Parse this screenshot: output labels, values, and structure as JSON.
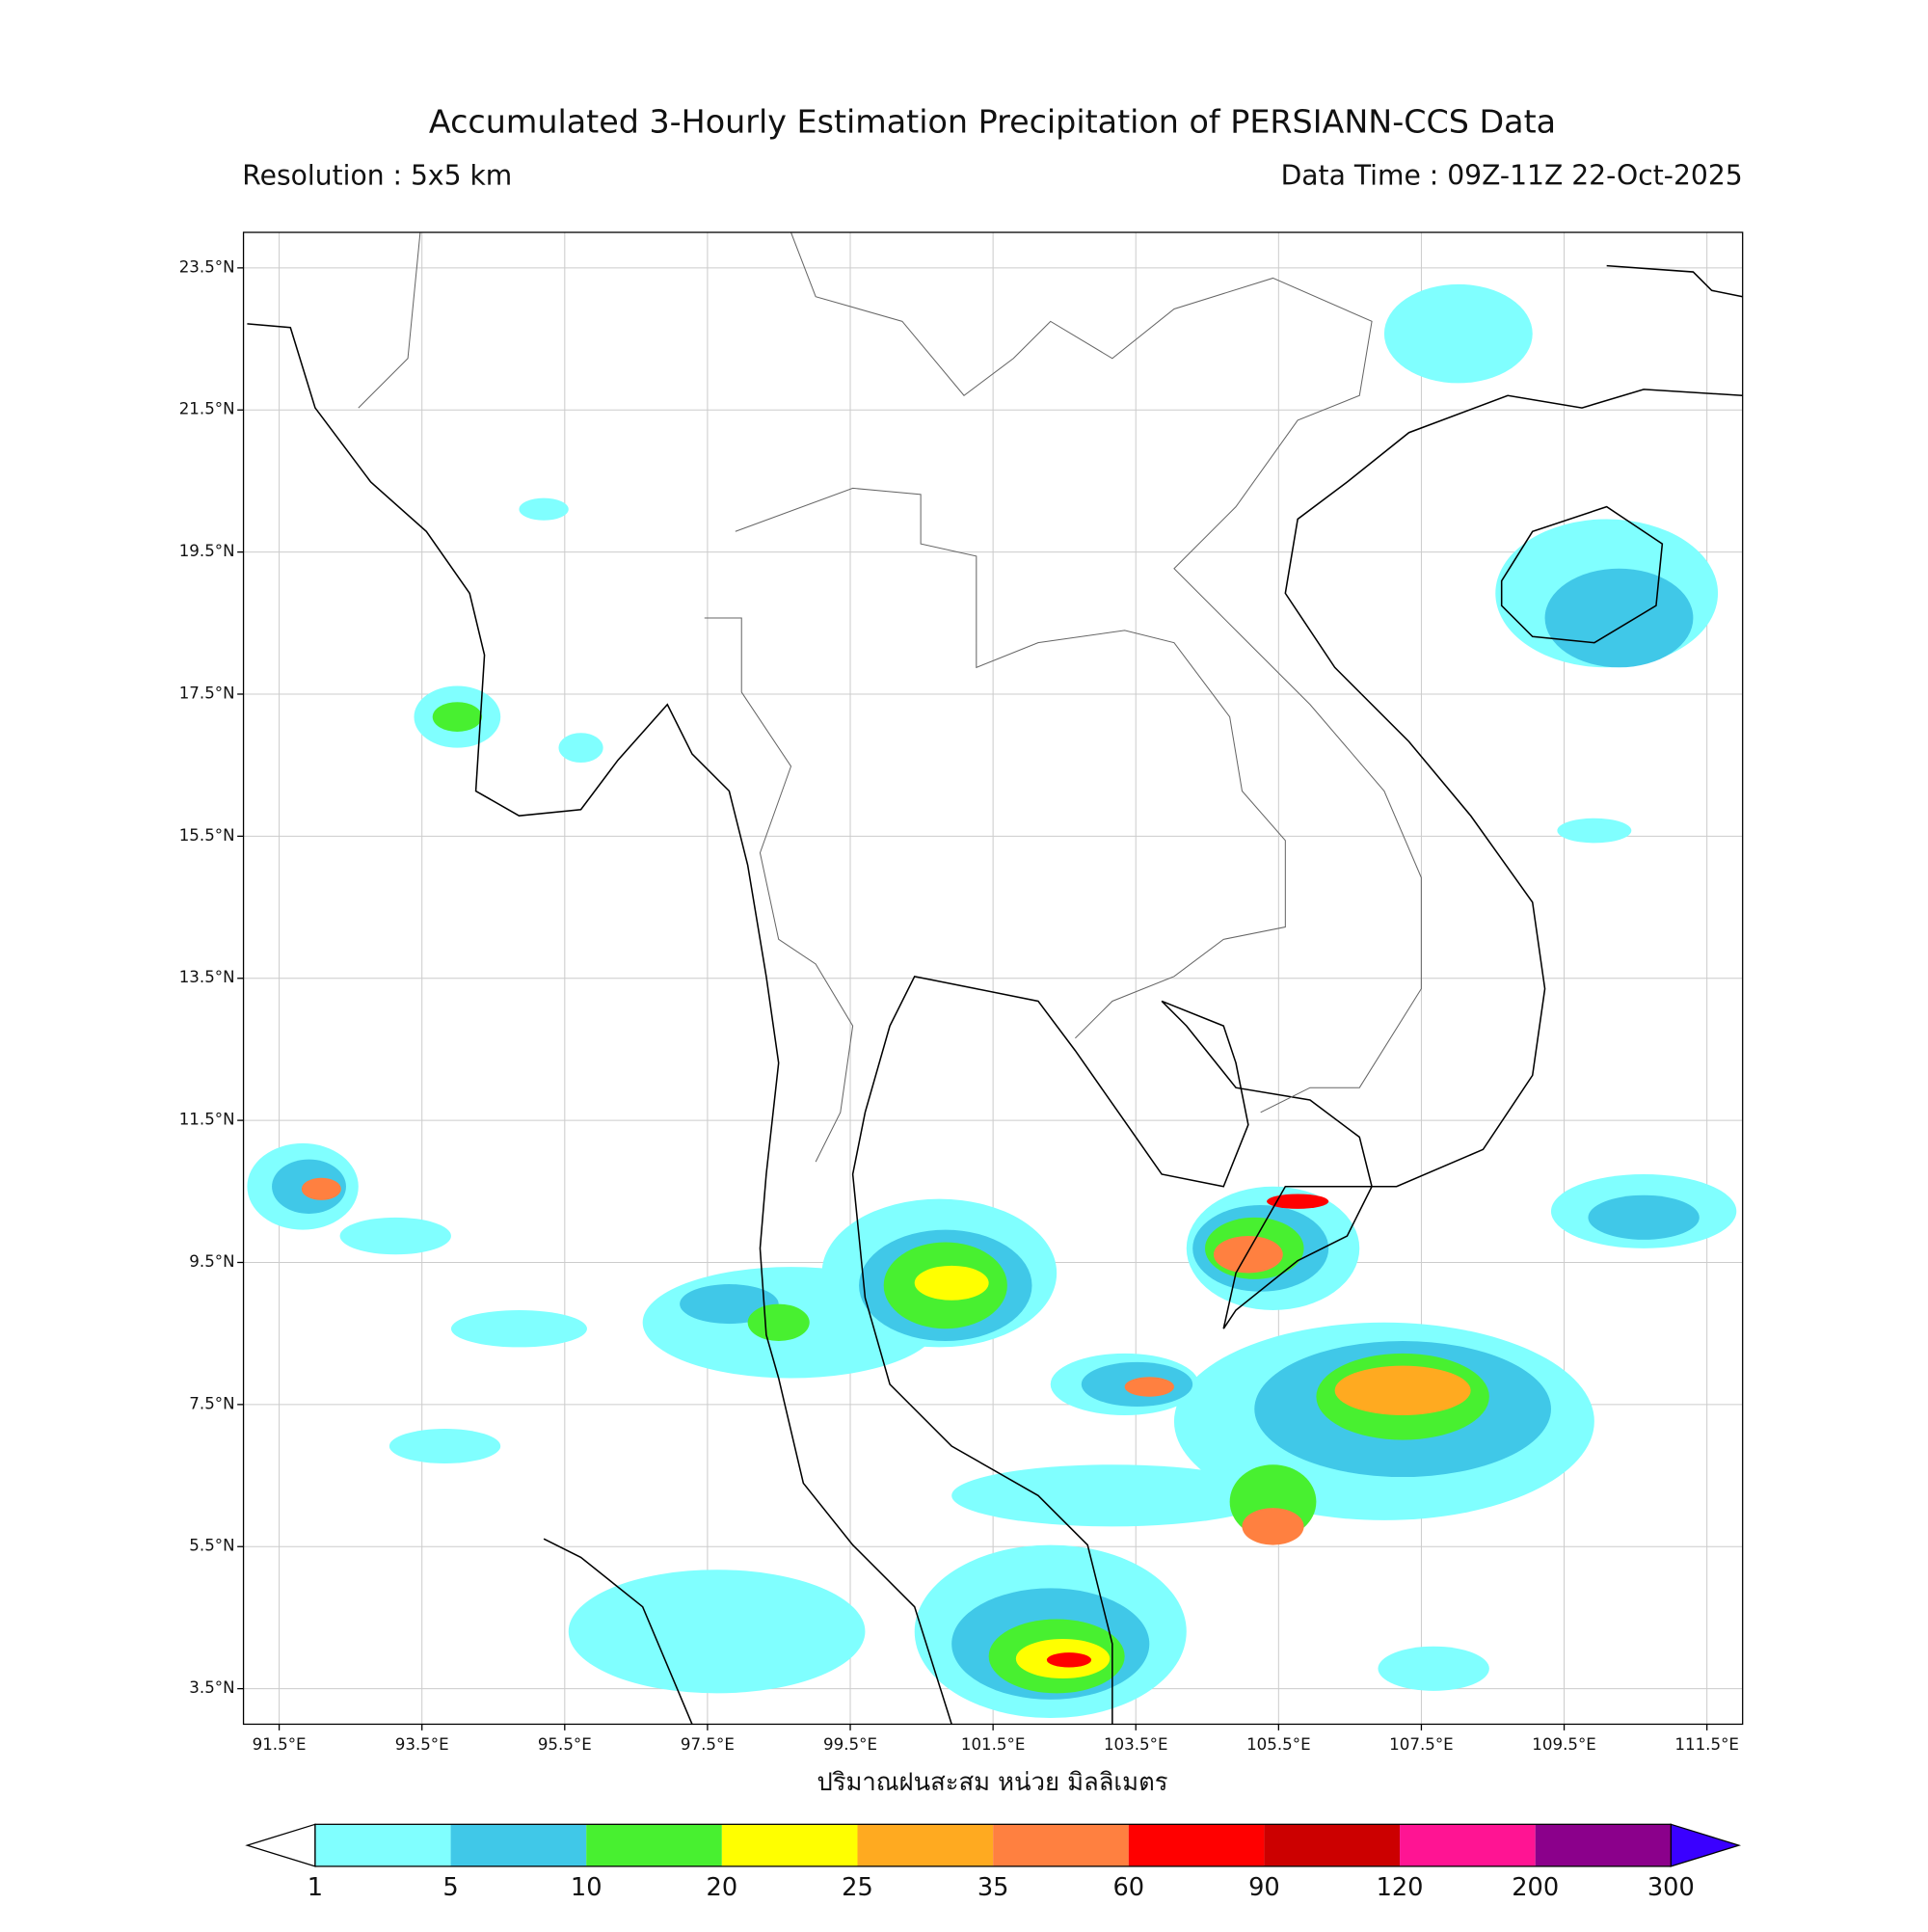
{
  "map": {
    "title": "Accumulated 3-Hourly Estimation Precipitation of PERSIANN-CCS Data",
    "resolution": "Resolution : 5x5 km",
    "data_time": "Data Time : 09Z-11Z 22-Oct-2025",
    "lon_range": [
      91,
      112
    ],
    "lat_range": [
      3,
      24
    ],
    "lon_ticks": [
      {
        "value": 91.5,
        "label": "91.5°E"
      },
      {
        "value": 93.5,
        "label": "93.5°E"
      },
      {
        "value": 95.5,
        "label": "95.5°E"
      },
      {
        "value": 97.5,
        "label": "97.5°E"
      },
      {
        "value": 99.5,
        "label": "99.5°E"
      },
      {
        "value": 101.5,
        "label": "101.5°E"
      },
      {
        "value": 103.5,
        "label": "103.5°E"
      },
      {
        "value": 105.5,
        "label": "105.5°E"
      },
      {
        "value": 107.5,
        "label": "107.5°E"
      },
      {
        "value": 109.5,
        "label": "109.5°E"
      },
      {
        "value": 111.5,
        "label": "111.5°E"
      }
    ],
    "lat_ticks": [
      {
        "value": 23.5,
        "label": "23.5°N"
      },
      {
        "value": 21.5,
        "label": "21.5°N"
      },
      {
        "value": 19.5,
        "label": "19.5°N"
      },
      {
        "value": 17.5,
        "label": "17.5°N"
      },
      {
        "value": 15.5,
        "label": "15.5°N"
      },
      {
        "value": 13.5,
        "label": "13.5°N"
      },
      {
        "value": 11.5,
        "label": "11.5°N"
      },
      {
        "value": 9.5,
        "label": "9.5°N"
      },
      {
        "value": 7.5,
        "label": "7.5°N"
      },
      {
        "value": 5.5,
        "label": "5.5°N"
      },
      {
        "value": 3.5,
        "label": "3.5°N"
      }
    ],
    "grid": true,
    "colorbar_label": "ปริมาณฝนสะสม หน่วย มิลลิเมตร",
    "colorbar_levels": [
      1,
      5,
      10,
      20,
      25,
      35,
      60,
      90,
      120,
      200,
      300
    ],
    "colorbar_colors": [
      "#80ffff",
      "#40c8e8",
      "#48f030",
      "#ffff00",
      "#ffaa20",
      "#ff8040",
      "#ff0000",
      "#cc0000",
      "#ff1493",
      "#8b008b"
    ],
    "colorbar_under_color": "#ffffff",
    "colorbar_over_color": "#3a00ff"
  }
}
